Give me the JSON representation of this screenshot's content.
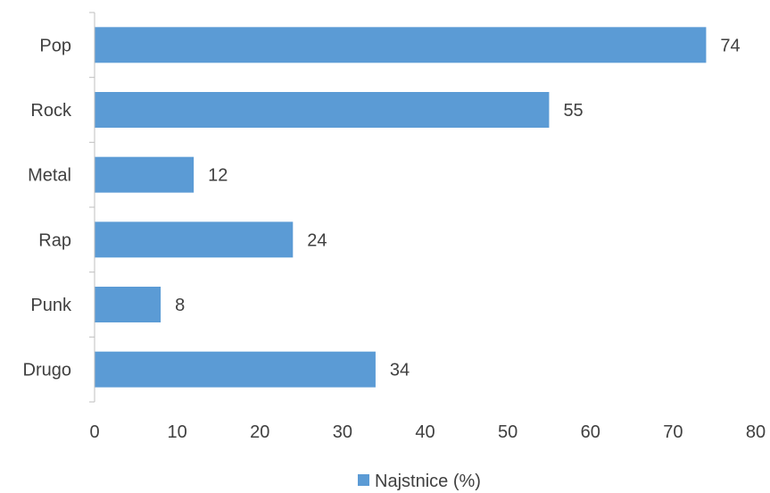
{
  "chart_data": {
    "type": "bar",
    "orientation": "horizontal",
    "categories": [
      "Pop",
      "Rock",
      "Metal",
      "Rap",
      "Punk",
      "Drugo"
    ],
    "series": [
      {
        "name": "Najstnice (%)",
        "values": [
          74,
          55,
          12,
          24,
          8,
          34
        ],
        "color": "#5B9BD5"
      }
    ],
    "xlim": [
      0,
      80
    ],
    "x_ticks": [
      "0",
      "10",
      "20",
      "30",
      "40",
      "50",
      "60",
      "70",
      "80"
    ],
    "data_labels": [
      "74",
      "55",
      "12",
      "24",
      "8",
      "34"
    ],
    "grid": false,
    "legend_position": "bottom"
  }
}
